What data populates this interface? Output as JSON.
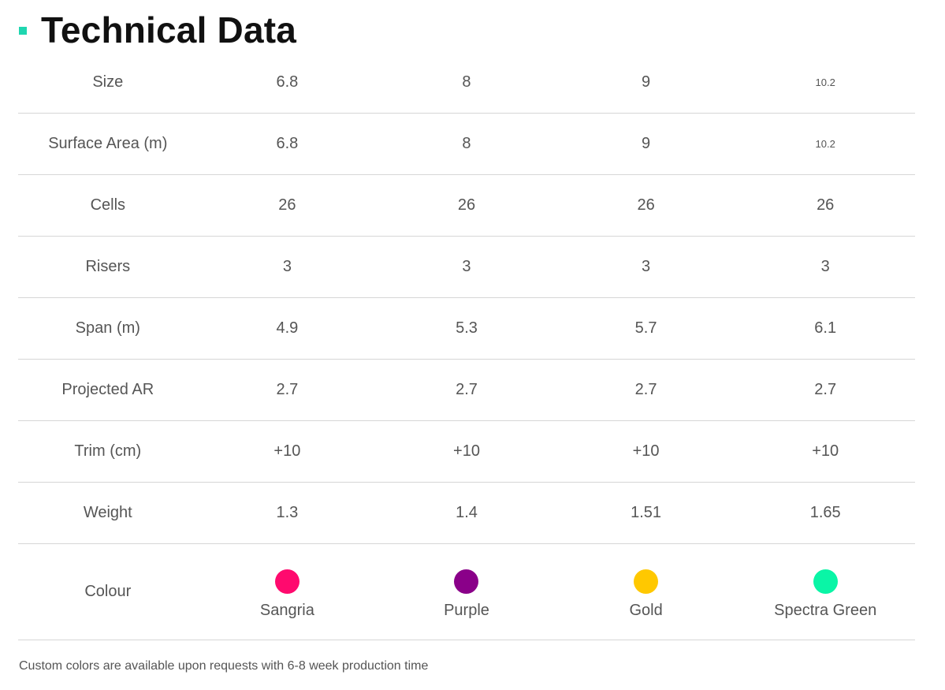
{
  "title": "Technical Data",
  "accent_color": "#1fd6b0",
  "rows": [
    {
      "label": "Size",
      "values": [
        "6.8",
        "8",
        "9",
        "10.2"
      ]
    },
    {
      "label": "Surface Area (m)",
      "values": [
        "6.8",
        "8",
        "9",
        "10.2"
      ]
    },
    {
      "label": "Cells",
      "values": [
        "26",
        "26",
        "26",
        "26"
      ]
    },
    {
      "label": "Risers",
      "values": [
        "3",
        "3",
        "3",
        "3"
      ]
    },
    {
      "label": "Span (m)",
      "values": [
        "4.9",
        "5.3",
        "5.7",
        "6.1"
      ]
    },
    {
      "label": "Projected AR",
      "values": [
        "2.7",
        "2.7",
        "2.7",
        "2.7"
      ]
    },
    {
      "label": "Trim (cm)",
      "values": [
        "+10",
        "+10",
        "+10",
        "+10"
      ]
    },
    {
      "label": "Weight",
      "values": [
        "1.3",
        "1.4",
        "1.51",
        "1.65"
      ]
    }
  ],
  "colour_row": {
    "label": "Colour",
    "colours": [
      {
        "name": "Sangria",
        "hex": "#ff0a6e"
      },
      {
        "name": "Purple",
        "hex": "#8a0089"
      },
      {
        "name": "Gold",
        "hex": "#ffc800"
      },
      {
        "name": "Spectra Green",
        "hex": "#0af5a6"
      }
    ]
  },
  "note": "Custom colors are available upon requests with 6-8 week production time"
}
